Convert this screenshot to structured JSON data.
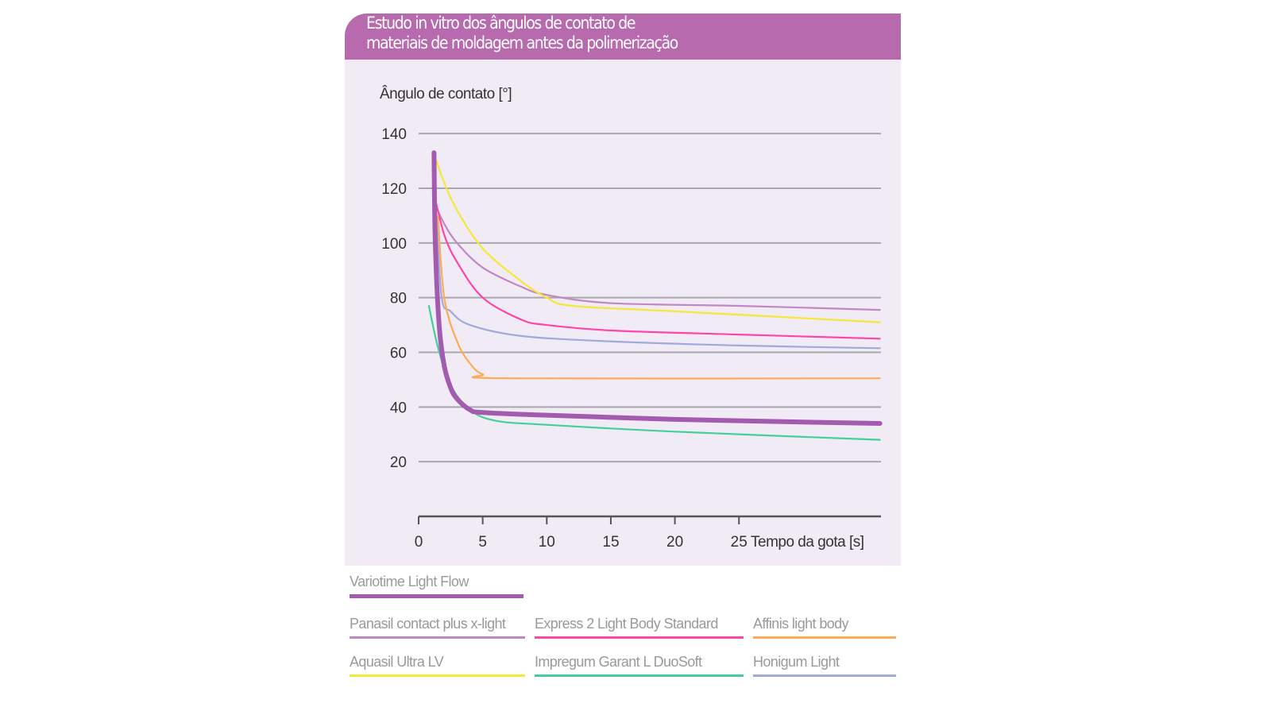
{
  "title": [
    "Estudo in vitro dos ângulos de contato de",
    "materiais de moldagem antes da polimerização"
  ],
  "chart_data": {
    "type": "line",
    "title": "Estudo in vitro dos ângulos de contato de materiais de moldagem antes da polimerização",
    "ylabel": "Ângulo de contato [°]",
    "xlabel": "Tempo da gota [s]",
    "xlim": [
      0,
      36
    ],
    "ylim": [
      0,
      140
    ],
    "xticks": [
      0,
      5,
      10,
      15,
      20,
      25
    ],
    "yticks": [
      20,
      40,
      60,
      80,
      100,
      120,
      140
    ],
    "grid": "horizontal",
    "legend": "bottom",
    "series": [
      {
        "name": "Variotime Light Flow",
        "color": "#a35bb0",
        "x": [
          1.2,
          1.3,
          1.6,
          2,
          2.5,
          3,
          4,
          5,
          10,
          20,
          30,
          36
        ],
        "y": [
          133,
          100,
          70,
          55,
          47,
          43,
          39,
          38,
          37,
          35.5,
          34.5,
          34
        ]
      },
      {
        "name": "Panasil contact plus x-light",
        "color": "#c287c4",
        "x": [
          1.2,
          2,
          3,
          5,
          8,
          10,
          15,
          25,
          36
        ],
        "y": [
          115,
          107,
          100,
          91,
          84,
          81,
          78,
          77,
          75.5
        ]
      },
      {
        "name": "Express 2 Light Body Standard",
        "color": "#ff45a8",
        "x": [
          1.2,
          2,
          3,
          5,
          8,
          10,
          15,
          25,
          36
        ],
        "y": [
          118,
          103,
          93,
          80,
          72,
          70,
          68,
          66.5,
          65
        ]
      },
      {
        "name": "Affinis light body",
        "color": "#ffaa55",
        "x": [
          1.5,
          2,
          3,
          4,
          5,
          7,
          36
        ],
        "y": [
          110,
          80,
          64,
          56,
          52,
          50.5,
          50.5
        ]
      },
      {
        "name": "Aquasil Ultra LV",
        "color": "#f4e83a",
        "x": [
          1.4,
          2,
          3,
          5,
          8,
          10,
          12,
          20,
          36
        ],
        "y": [
          130,
          122,
          112,
          98,
          86,
          80,
          77,
          75,
          71
        ]
      },
      {
        "name": "Impregum Garant L DuoSoft",
        "color": "#44cf9a",
        "x": [
          0.8,
          1.5,
          2.5,
          4,
          6,
          10,
          20,
          36
        ],
        "y": [
          77,
          62,
          48,
          39,
          35,
          33.5,
          31,
          28
        ]
      },
      {
        "name": "Honigum Light",
        "color": "#9fa9da",
        "x": [
          1.4,
          1.8,
          2.5,
          4,
          8,
          15,
          25,
          36
        ],
        "y": [
          110,
          80,
          75,
          70,
          66,
          64,
          62.5,
          61.5
        ]
      }
    ]
  }
}
